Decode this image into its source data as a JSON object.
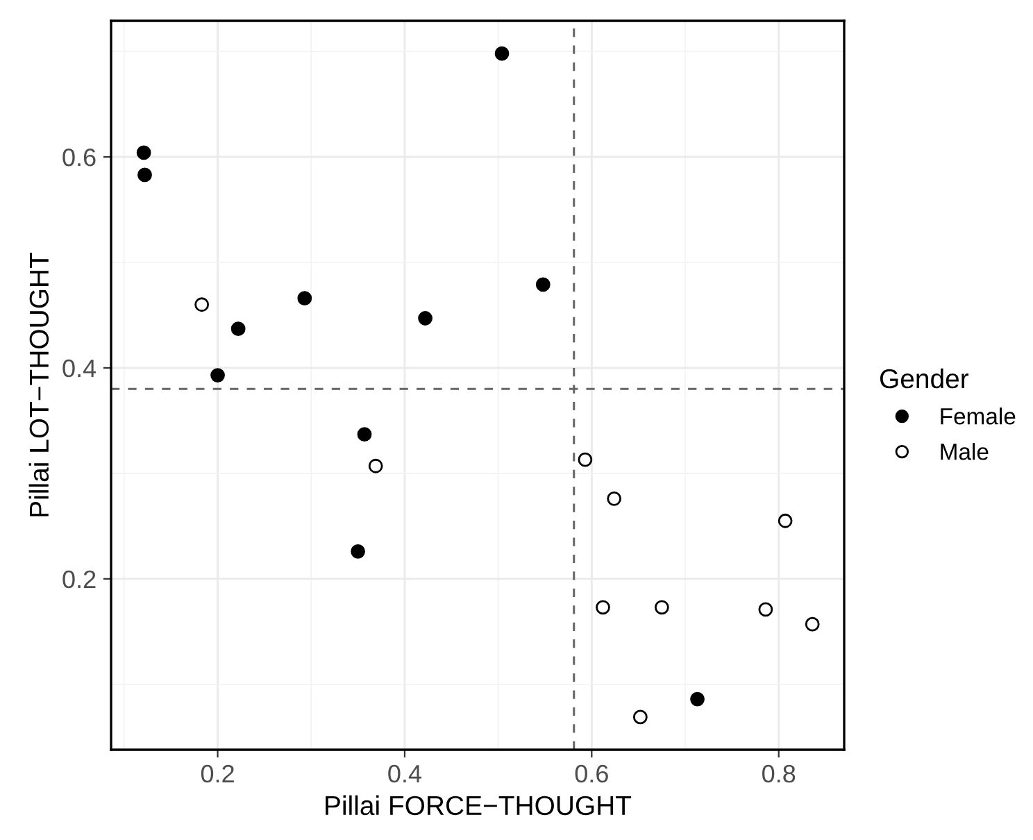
{
  "chart_data": {
    "type": "scatter",
    "xlabel": "Pillai FORCE−THOUGHT",
    "ylabel": "Pillai LOT−THOUGHT",
    "legend_title": "Gender",
    "legend": "right",
    "grid": true,
    "marker": "circle",
    "xlim": [
      0.086,
      0.87
    ],
    "ylim": [
      0.038,
      0.729
    ],
    "xticks": [
      0.2,
      0.4,
      0.6,
      0.8
    ],
    "yticks": [
      0.2,
      0.4,
      0.6
    ],
    "ref_lines": [
      {
        "axis": "x",
        "value": 0.581,
        "color": "#666666",
        "line_style": "dashed"
      },
      {
        "axis": "y",
        "value": 0.38,
        "color": "#666666",
        "line_style": "dashed"
      }
    ],
    "series": [
      {
        "name": "Female",
        "color": "#000000",
        "x": [
          0.121,
          0.122,
          0.222,
          0.293,
          0.2,
          0.422,
          0.504,
          0.548,
          0.357,
          0.35,
          0.713
        ],
        "values": [
          0.604,
          0.583,
          0.437,
          0.466,
          0.393,
          0.447,
          0.698,
          0.479,
          0.337,
          0.226,
          0.086
        ]
      },
      {
        "name": "Male",
        "color": "#ffffff",
        "x": [
          0.183,
          0.369,
          0.593,
          0.624,
          0.807,
          0.612,
          0.675,
          0.786,
          0.836,
          0.652
        ],
        "values": [
          0.46,
          0.307,
          0.313,
          0.276,
          0.255,
          0.173,
          0.173,
          0.171,
          0.157,
          0.069
        ]
      }
    ]
  }
}
